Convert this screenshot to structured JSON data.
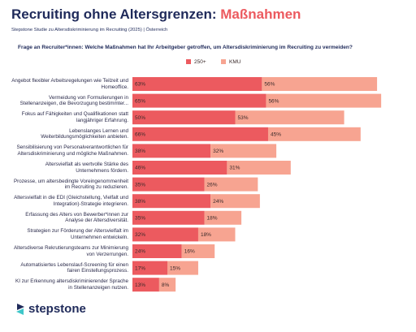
{
  "chart_data": {
    "type": "stacked-bar-horizontal",
    "title": "Recruiting ohne Altersgrenzen:",
    "title_highlight": "Maßnahmen",
    "subtitle": "Stepstone Studie zu Altersdiskriminierung im Recruiting (2025) | Österreich",
    "question": "Frage an Recruiter*innen: Welche Maßnahmen hat Ihr Arbeitgeber getroffen, um Altersdiskriminierung im Recruiting zu vermeiden?",
    "brand": "stepstone",
    "categories": [
      "Angebot flexibler Arbeitsregelungen wie Teilzeit und Homeoffice.",
      "Vermeidung von Formulierungen in Stellenanzeigen, die Bevorzugung bestimmter...",
      "Fokus auf Fähigkeiten und Qualifikationen statt langjähriger Erfahrung.",
      "Lebenslanges Lernen und Weiterbildungsmöglichkeiten anbieten.",
      "Sensibilisierung von Personalverantwortlichen für Altersdiskriminierung und mögliche Maßnahmen.",
      "Altersvielfalt als wertvolle Stärke des Unternehmens fördern.",
      "Prozesse, um altersbedingte Voreingenommenheit im Recruiting zu reduzieren.",
      "Altersvielfalt in die EDI (Gleichstellung, Vielfalt und Integration)-Strategie integrieren.",
      "Erfassung des Alters von Bewerber*innen zur Analyse der Altersdiversität.",
      "Strategien zur Förderung der Altersvielfalt im Unternehmen entwickeln.",
      "Altersdiverse Rekrutierungsteams zur Minimierung von Verzerrungen.",
      "Automatisiertes Lebenslauf-Screening für einen fairen Einstellungsprozess.",
      "KI zur Erkennung altersdiskriminierender Sprache in Stellenanzeigen nutzen."
    ],
    "series": [
      {
        "name": "250+",
        "color": "#ec5a5f",
        "values": [
          63,
          65,
          50,
          66,
          38,
          46,
          35,
          38,
          35,
          32,
          24,
          17,
          13
        ],
        "value_labels": [
          "63%",
          "65%",
          "50%",
          "66%",
          "38%",
          "46%",
          "35%",
          "38%",
          "35%",
          "32%",
          "24%",
          "17%",
          "13%"
        ]
      },
      {
        "name": "KMU",
        "color": "#f7a491",
        "values": [
          56,
          56,
          53,
          45,
          32,
          31,
          26,
          24,
          18,
          18,
          16,
          15,
          8
        ],
        "value_labels": [
          "56%",
          "56%",
          "53%",
          "45%",
          "32%",
          "31%",
          "26%",
          "24%",
          "18%",
          "18%",
          "16%",
          "15%",
          "8%"
        ]
      }
    ]
  }
}
